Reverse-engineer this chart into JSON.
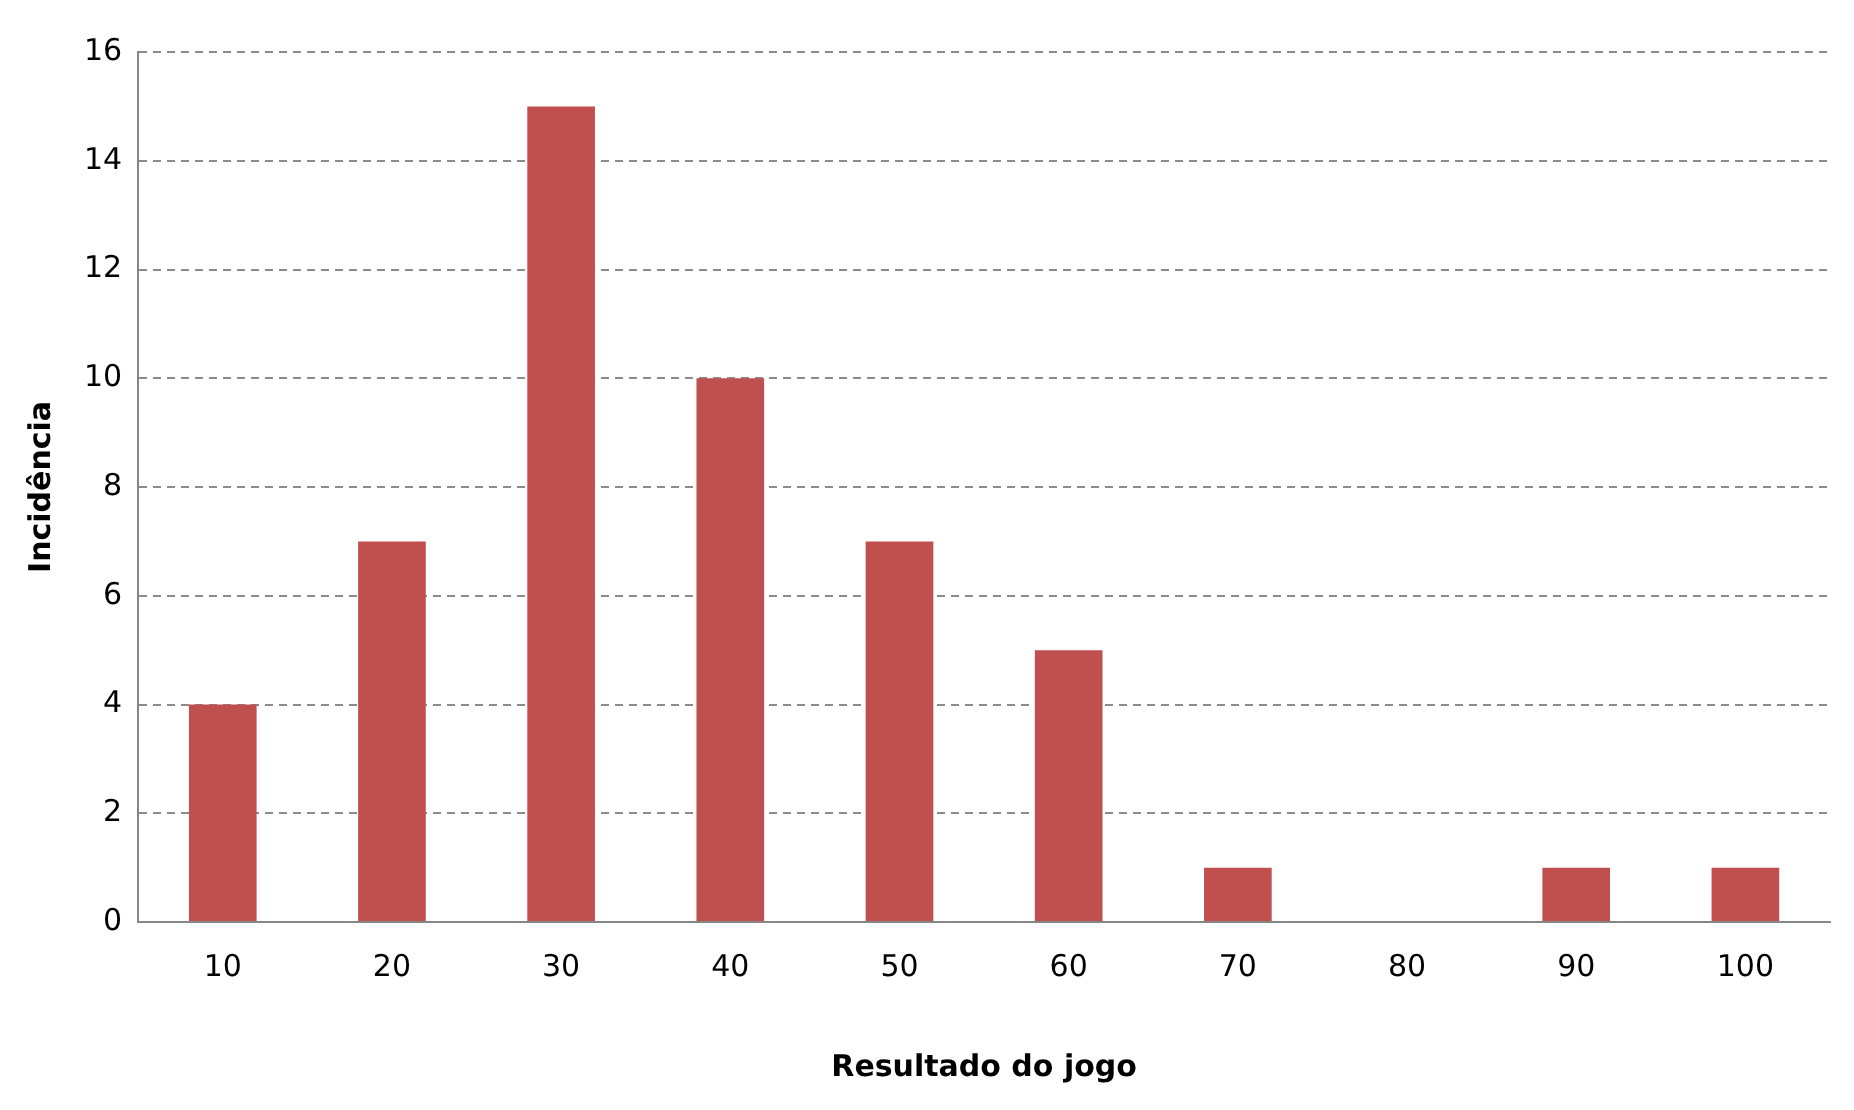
{
  "chart_data": {
    "type": "bar",
    "xlabel": "Resultado do jogo",
    "ylabel": "Incidência",
    "categories": [
      "10",
      "20",
      "30",
      "40",
      "50",
      "60",
      "70",
      "80",
      "90",
      "100"
    ],
    "values": [
      4,
      7,
      15,
      10,
      7,
      5,
      1,
      0,
      1,
      1
    ],
    "color": "#c0504d",
    "ylim": [
      0,
      16
    ],
    "yticks": [
      0,
      2,
      4,
      6,
      8,
      10,
      12,
      14,
      16
    ],
    "grid": "y",
    "line_style": "dashed",
    "legend": false
  }
}
